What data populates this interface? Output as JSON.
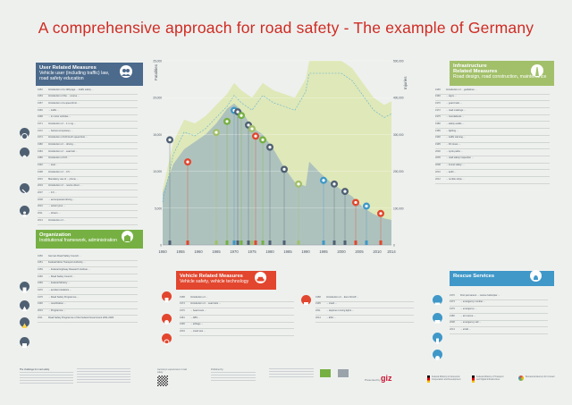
{
  "title": "A comprehensive approach for road safety - The example of Germany",
  "colors": {
    "accent": "#cf2b22",
    "user": "#4b6a8c",
    "org": "#76b043",
    "infra": "#a2c06a",
    "vehicle": "#e2462e",
    "rescue": "#3f98c8"
  },
  "user": {
    "heading": "User Related Measures",
    "sub1": "Vehicle user (including traffic) law,",
    "sub2": "road safety education",
    "rows": [
      {
        "y": "1952",
        "d": "Introduction of a 128-page ... traffic safety ..."
      },
      {
        "y": "1953",
        "d": "Introduction of the ... course ..."
      },
      {
        "y": "1957",
        "d": "Introduction of a speed limit ..."
      },
      {
        "y": "1960",
        "d": "... traffic ..."
      },
      {
        "y": "1968",
        "d": "... in motor vehicles ..."
      },
      {
        "y": "1971",
        "d": "Introduction of ... 1.1 mg ..."
      },
      {
        "y": "1972",
        "d": "... helmet compulsory ..."
      },
      {
        "y": "1974",
        "d": "Introduction of 100 km/h speed limit ..."
      },
      {
        "y": "1980",
        "d": "Introduction of ... driving ..."
      },
      {
        "y": "1984",
        "d": "Introduction of ... seat belt ..."
      },
      {
        "y": "1986",
        "d": "Introduction of 0.8 ..."
      },
      {
        "y": "1992",
        "d": "... seat ..."
      },
      {
        "y": "1998",
        "d": "Introduction of ... 0.5 ..."
      },
      {
        "y": "2001",
        "d": "Mandatory use of ... phone ..."
      },
      {
        "y": "2004",
        "d": "Introduction of ... novice driver ..."
      },
      {
        "y": "2007",
        "d": "... 0.0 ..."
      },
      {
        "y": "2008",
        "d": "... accompanied driving ..."
      },
      {
        "y": "2010",
        "d": "... winter tyres ..."
      },
      {
        "y": "2011",
        "d": "... drivers ..."
      },
      {
        "y": "2013",
        "d": "Introduction of ..."
      }
    ]
  },
  "org": {
    "heading": "Organization",
    "sub": "Institutional framework, administration",
    "rows": [
      {
        "y": "1950",
        "d": "German Road Safety Council ..."
      },
      {
        "y": "1951",
        "d": "Federal Motor Transport Authority ..."
      },
      {
        "y": "1959",
        "d": "... Federal Highway Research Institute ..."
      },
      {
        "y": "1966",
        "d": "... Road Safety Council ..."
      },
      {
        "y": "1969",
        "d": "... Federal Ministry ..."
      },
      {
        "y": "1970",
        "d": "... accident statistics ..."
      },
      {
        "y": "1975",
        "d": "... Road Safety Programme ..."
      },
      {
        "y": "1990",
        "d": "... reunification ..."
      },
      {
        "y": "2001",
        "d": "... Programme ..."
      },
      {
        "y": "2011",
        "d": "Road Safety Programme of the Federal Government 2011-2020"
      }
    ]
  },
  "infra": {
    "heading1": "Infrastructure",
    "heading2": "Related Measures",
    "sub": "Road design, road construction, maintenance",
    "rows": [
      {
        "y": "1965",
        "d": "Introduction of ... guidelines ..."
      },
      {
        "y": "1966",
        "d": "... signs ..."
      },
      {
        "y": "1970",
        "d": "... guard rails ..."
      },
      {
        "y": "1972",
        "d": "... road markings ..."
      },
      {
        "y": "1975",
        "d": "... roundabouts ..."
      },
      {
        "y": "1980",
        "d": "... safety audits ..."
      },
      {
        "y": "1985",
        "d": "... lighting ..."
      },
      {
        "y": "1990",
        "d": "... traffic calming ..."
      },
      {
        "y": "1995",
        "d": "... 30 zones ..."
      },
      {
        "y": "2000",
        "d": "... cycle paths ..."
      },
      {
        "y": "2005",
        "d": "... road safety inspection ..."
      },
      {
        "y": "2008",
        "d": "... tunnel safety ..."
      },
      {
        "y": "2010",
        "d": "... audit ..."
      },
      {
        "y": "2012",
        "d": "... rumble strips ..."
      }
    ]
  },
  "vehicle": {
    "heading": "Vehicle Related Measures",
    "sub": "Vehicle safety, vehicle technology",
    "left_rows": [
      {
        "y": "1958",
        "d": "Introduction of ..."
      },
      {
        "y": "1974",
        "d": "Introduction of ... seat belts ..."
      },
      {
        "y": "1976",
        "d": "... head rests ..."
      },
      {
        "y": "1981",
        "d": "... ABS ..."
      },
      {
        "y": "1995",
        "d": "... airbags ..."
      },
      {
        "y": "2004",
        "d": "... crash test ..."
      }
    ],
    "right_rows": [
      {
        "y": "1988",
        "d": "Introduction of ... Euro NCAP ..."
      },
      {
        "y": "1995",
        "d": "... crash ..."
      },
      {
        "y": "2011",
        "d": "... daytime running lights ..."
      },
      {
        "y": "2014",
        "d": "... ESC ..."
      }
    ]
  },
  "rescue": {
    "heading": "Rescue Services",
    "rows": [
      {
        "y": "1970",
        "d": "First permanent ... rescue helicopter ..."
      },
      {
        "y": "1973",
        "d": "... emergency number ..."
      },
      {
        "y": "1979",
        "d": "... emergency ..."
      },
      {
        "y": "1980",
        "d": "... air rescue ..."
      },
      {
        "y": "2008",
        "d": "... emergency call ..."
      },
      {
        "y": "2013",
        "d": "... eCall ..."
      }
    ]
  },
  "chart_data": {
    "type": "area",
    "left_axis_label": "Fatalities",
    "right_axis_label": "Injuries",
    "x_ticks": [
      "1950",
      "1955",
      "1960",
      "1965",
      "1970",
      "1975",
      "1980",
      "1985",
      "1990",
      "1995",
      "2000",
      "2005",
      "2010",
      "2014"
    ],
    "years": [
      1950,
      1953,
      1956,
      1959,
      1962,
      1965,
      1968,
      1970,
      1972,
      1975,
      1978,
      1981,
      1984,
      1987,
      1990,
      1991,
      1994,
      1997,
      2000,
      2003,
      2006,
      2009,
      2012,
      2014
    ],
    "injuries": [
      150000,
      280000,
      340000,
      330000,
      350000,
      380000,
      410000,
      440000,
      420000,
      400000,
      440000,
      420000,
      410000,
      400000,
      450000,
      500000,
      500000,
      500000,
      500000,
      480000,
      440000,
      400000,
      380000,
      390000
    ],
    "fatalities": [
      7000,
      11000,
      13000,
      14000,
      15000,
      16500,
      18500,
      19200,
      18300,
      16000,
      15000,
      13000,
      10500,
      8500,
      8000,
      11300,
      9800,
      8500,
      7500,
      6600,
      5100,
      4200,
      3600,
      3400
    ],
    "left_ticks": [
      "25,000",
      "20,000",
      "15,000",
      "10,000",
      "5,000",
      "0"
    ],
    "right_ticks": [
      "500,000",
      "400,000",
      "300,000",
      "200,000",
      "100,000",
      "0"
    ]
  },
  "footer": {
    "col1": "The challenge for road safety",
    "col2": "Germany's experiences in road safety",
    "col3": "Published by",
    "org1": "Deutsche Gesellschaft für Internationale Zusammenarbeit (GIZ) GmbH",
    "presented": "Presented by",
    "giz": "giz",
    "bmz": "Federal Ministry for Economic Cooperation and Development",
    "bmvi": "Federal Ministry of Transport and Digital Infrastructure",
    "bmub": "Bundesministerium für Umwelt"
  }
}
